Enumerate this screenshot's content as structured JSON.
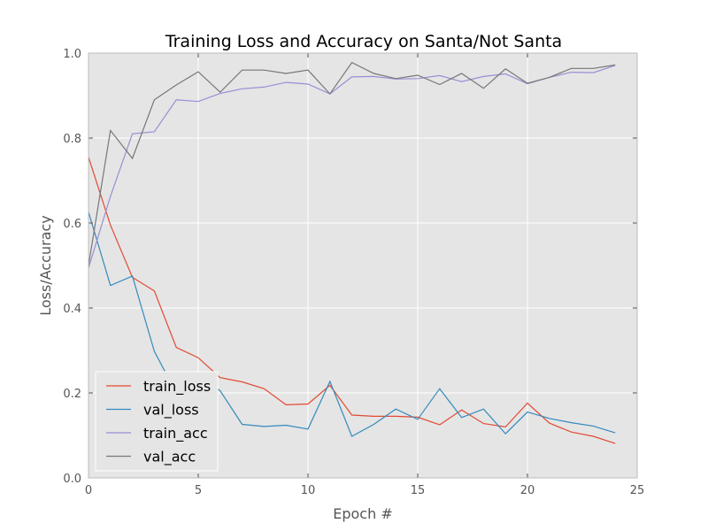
{
  "chart_data": {
    "type": "line",
    "title": "Training Loss and Accuracy on Santa/Not Santa",
    "xlabel": "Epoch #",
    "ylabel": "Loss/Accuracy",
    "xlim": [
      0,
      25
    ],
    "ylim": [
      0.0,
      1.0
    ],
    "xticks": [
      "0",
      "5",
      "10",
      "15",
      "20",
      "25"
    ],
    "yticks": [
      "0.0",
      "0.2",
      "0.4",
      "0.6",
      "0.8",
      "1.0"
    ],
    "grid": true,
    "legend_position": "lower-left",
    "x": [
      0,
      1,
      2,
      3,
      4,
      5,
      6,
      7,
      8,
      9,
      10,
      11,
      12,
      13,
      14,
      15,
      16,
      17,
      18,
      19,
      20,
      21,
      22,
      23,
      24
    ],
    "series": [
      {
        "name": "train_loss",
        "color": "#e24a33",
        "values": [
          0.755,
          0.595,
          0.472,
          0.44,
          0.307,
          0.283,
          0.236,
          0.226,
          0.21,
          0.172,
          0.174,
          0.218,
          0.148,
          0.145,
          0.145,
          0.143,
          0.125,
          0.16,
          0.128,
          0.12,
          0.176,
          0.129,
          0.108,
          0.098,
          0.081
        ]
      },
      {
        "name": "val_loss",
        "color": "#348abd",
        "values": [
          0.626,
          0.453,
          0.475,
          0.298,
          0.2,
          0.244,
          0.205,
          0.126,
          0.121,
          0.124,
          0.115,
          0.227,
          0.098,
          0.126,
          0.162,
          0.138,
          0.21,
          0.142,
          0.162,
          0.104,
          0.155,
          0.14,
          0.13,
          0.122,
          0.106
        ]
      },
      {
        "name": "train_acc",
        "color": "#988ed5",
        "values": [
          0.494,
          0.663,
          0.81,
          0.815,
          0.89,
          0.886,
          0.905,
          0.916,
          0.92,
          0.931,
          0.927,
          0.904,
          0.944,
          0.945,
          0.939,
          0.94,
          0.947,
          0.933,
          0.945,
          0.951,
          0.928,
          0.943,
          0.955,
          0.954,
          0.971
        ]
      },
      {
        "name": "val_acc",
        "color": "#777777",
        "values": [
          0.5,
          0.818,
          0.752,
          0.89,
          0.925,
          0.956,
          0.908,
          0.96,
          0.96,
          0.952,
          0.96,
          0.904,
          0.978,
          0.952,
          0.94,
          0.948,
          0.926,
          0.952,
          0.917,
          0.963,
          0.929,
          0.943,
          0.964,
          0.964,
          0.972
        ]
      }
    ]
  }
}
